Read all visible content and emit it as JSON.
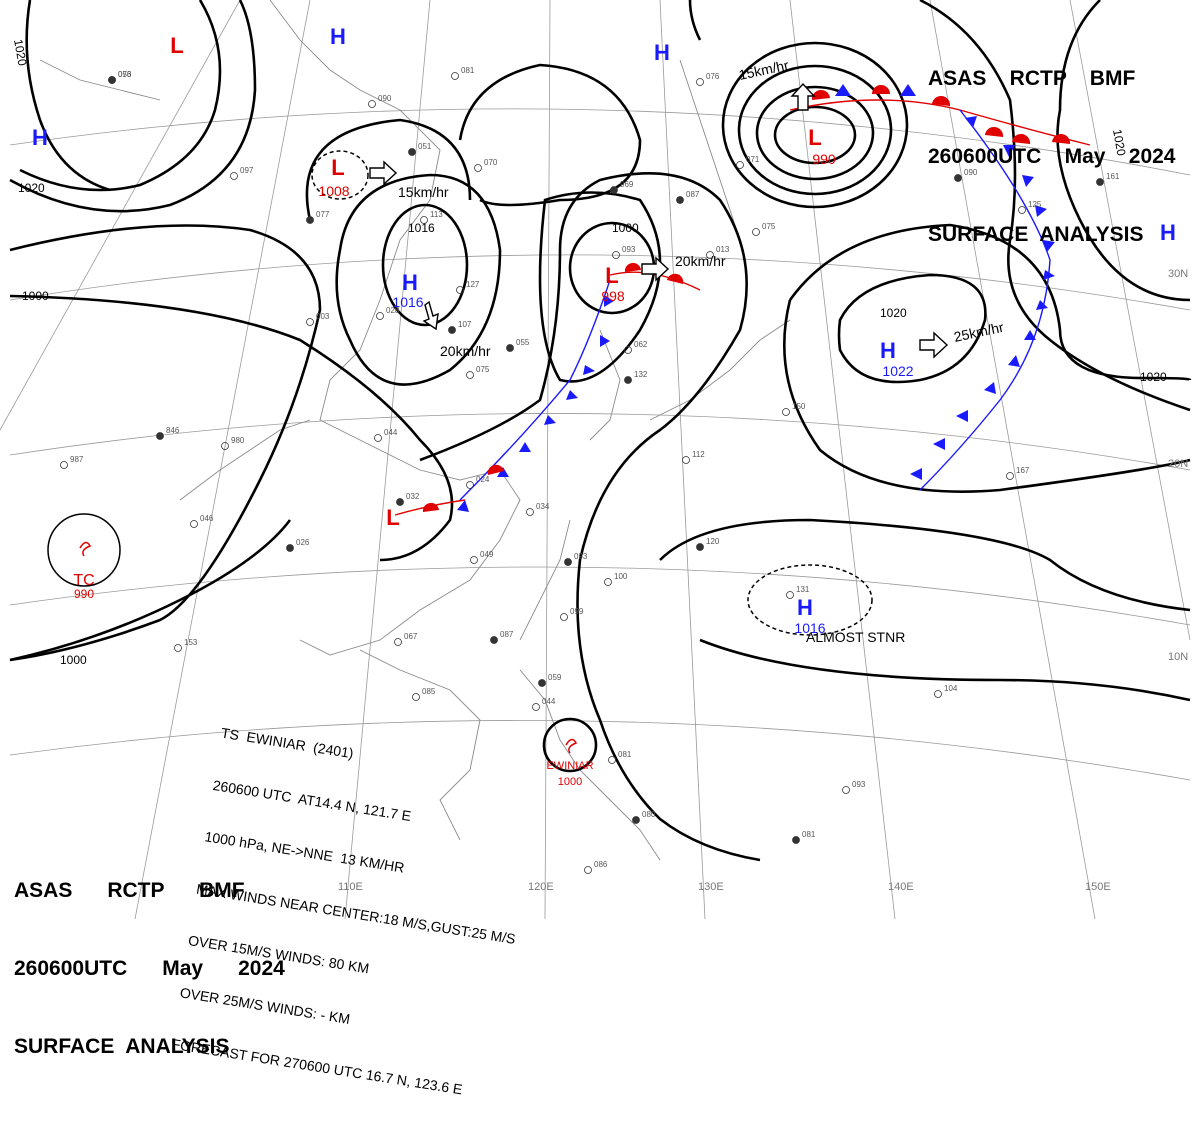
{
  "header": {
    "top_right": [
      "ASAS    RCTP    BMF",
      "260600UTC    May    2024",
      "SURFACE  ANALYSIS"
    ],
    "bottom_left": [
      "ASAS      RCTP      BMF",
      "260600UTC      May      2024",
      "SURFACE  ANALYSIS"
    ]
  },
  "storm_bulletin": [
    "TS  EWINIAR  (2401)",
    "260600 UTC  AT14.4 N, 121.7 E",
    "1000 hPa, NE->NNE  13 KM/HR",
    "MAX WINDS NEAR CENTER:18 M/S,GUST:25 M/S",
    "OVER 15M/S WINDS: 80 KM",
    "OVER 25M/S WINDS: - KM",
    "FORECAST FOR 270600 UTC 16.7 N, 123.6 E"
  ],
  "pressure_centers": [
    {
      "type": "L",
      "pressure": ""
    },
    {
      "type": "H",
      "pressure": ""
    },
    {
      "type": "H",
      "pressure": ""
    },
    {
      "type": "H",
      "pressure": ""
    },
    {
      "type": "L",
      "pressure": "1008",
      "motion": "15km/hr"
    },
    {
      "type": "H",
      "pressure": "1016",
      "motion": "20km/hr"
    },
    {
      "type": "L",
      "pressure": "998",
      "motion": "20km/hr"
    },
    {
      "type": "L",
      "pressure": "990",
      "motion": "15km/hr"
    },
    {
      "type": "H",
      "pressure": "1022",
      "motion": "25km/hr"
    },
    {
      "type": "H",
      "pressure": "1016",
      "motion": "ALMOST STNR"
    },
    {
      "type": "H",
      "pressure": ""
    },
    {
      "type": "L",
      "pressure": ""
    },
    {
      "type": "TC",
      "pressure": "990"
    },
    {
      "type": "TS",
      "name": "EWINIAR",
      "pressure": "1000"
    }
  ],
  "isobar_labels": [
    "1020",
    "1020",
    "1000",
    "1000",
    "1016",
    "1020",
    "1020",
    "1020",
    "1000"
  ],
  "lat_labels": [
    "30N",
    "20N",
    "10N"
  ],
  "lon_labels": [
    "110E",
    "120E",
    "130E",
    "140E",
    "150E"
  ],
  "station_plots": [
    "076",
    "081",
    "090",
    "051",
    "070",
    "097",
    "077",
    "113",
    "127",
    "107",
    "003",
    "075",
    "055",
    "028",
    "980",
    "846",
    "987",
    "046",
    "026",
    "024",
    "044",
    "032",
    "034",
    "049",
    "093",
    "100",
    "099",
    "087",
    "067",
    "085",
    "059",
    "044",
    "086",
    "080",
    "081",
    "093",
    "081",
    "104",
    "131",
    "120",
    "150",
    "112",
    "132",
    "062",
    "093",
    "969",
    "013",
    "075",
    "087",
    "071",
    "076",
    "090",
    "125",
    "167",
    "161",
    "153",
    "053"
  ],
  "colors": {
    "low": "#e00000",
    "high": "#1a1aff",
    "isobar": "#000000",
    "grid": "#9a9a9a",
    "coast": "#8a8a8a"
  }
}
